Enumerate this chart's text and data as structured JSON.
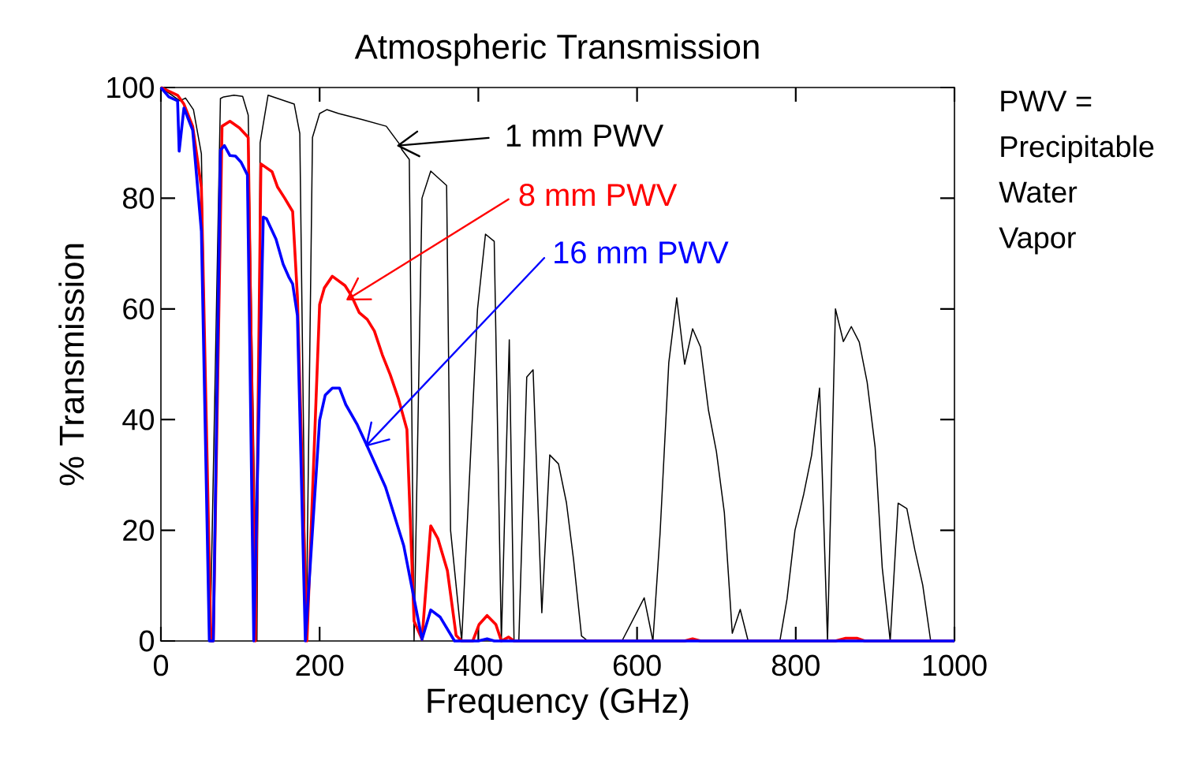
{
  "chart_data": {
    "type": "line",
    "title": "Atmospheric Transmission",
    "xlabel": "Frequency (GHz)",
    "ylabel": "% Transmission",
    "xlim": [
      0,
      1000
    ],
    "ylim": [
      0,
      100
    ],
    "xticks": [
      0,
      200,
      400,
      600,
      800,
      1000
    ],
    "yticks": [
      0,
      20,
      40,
      60,
      80,
      100
    ],
    "grid": false,
    "legend": "top right",
    "marker": "none",
    "annotations": [
      "PWV = Precipitable Water Vapor"
    ],
    "series": [
      {
        "name": "1 mm PWV",
        "color": "#000000",
        "x": [
          0,
          20,
          24,
          31,
          41,
          51,
          62,
          75,
          79,
          92,
          103,
          110,
          121,
          125,
          135,
          168,
          175,
          183,
          191,
          200,
          209,
          224,
          254,
          284,
          300,
          304,
          313,
          319,
          329,
          340,
          360,
          365,
          379,
          399,
          409,
          420,
          429,
          439,
          445,
          451,
          461,
          469,
          480,
          490,
          501,
          511,
          520,
          530,
          538,
          581,
          599,
          609,
          620,
          629,
          640,
          650,
          660,
          670,
          680,
          690,
          700,
          710,
          720,
          730,
          740,
          780,
          789,
          799,
          810,
          820,
          830,
          840,
          850,
          860,
          870,
          880,
          890,
          900,
          909,
          919,
          929,
          940,
          950,
          960,
          970,
          1000
        ],
        "values": [
          100,
          98,
          97.6,
          98.1,
          96,
          88,
          0,
          98,
          98.3,
          98.6,
          98.4,
          95,
          0,
          90,
          98.6,
          97,
          91.7,
          0,
          91,
          95.3,
          96,
          95.3,
          94.2,
          93,
          89.9,
          88.7,
          87,
          0,
          80,
          84.9,
          82.3,
          20,
          0,
          60,
          73.5,
          72.2,
          0,
          54.4,
          0,
          0,
          47.7,
          49,
          5.1,
          33.6,
          32,
          25,
          14.7,
          0.9,
          0,
          0,
          5,
          7.8,
          0,
          19.4,
          50.3,
          62,
          50,
          56.4,
          53.1,
          41.7,
          34.2,
          23.2,
          1.4,
          5.7,
          0,
          0,
          7.6,
          20,
          26.5,
          33.6,
          45.7,
          0,
          60,
          54.1,
          56.8,
          54,
          46.7,
          35,
          13.2,
          0,
          24.9,
          23.9,
          16.5,
          10.1,
          0,
          0
        ]
      },
      {
        "name": "8 mm PWV",
        "color": "#ff0000",
        "x": [
          0,
          21,
          29,
          40,
          51,
          63,
          66,
          77,
          87,
          99,
          110,
          119,
          126,
          140,
          147,
          156,
          166,
          172,
          184,
          200,
          206,
          216,
          232,
          240,
          250,
          260,
          269,
          279,
          289,
          299,
          310,
          319,
          329,
          340,
          349,
          361,
          372,
          379,
          393,
          401,
          411,
          422,
          429,
          438,
          445,
          660,
          670,
          680,
          850,
          863,
          877,
          887,
          1000
        ],
        "values": [
          100,
          98.6,
          97,
          93,
          81.9,
          0,
          0,
          93,
          93.9,
          92.7,
          91,
          0,
          86.2,
          84.8,
          82,
          80,
          77.6,
          62.2,
          0,
          60.8,
          63.8,
          65.9,
          64.2,
          62.4,
          59.3,
          58.1,
          56,
          51.7,
          48.1,
          43.9,
          38.2,
          3.6,
          0.3,
          20.8,
          18.5,
          12.7,
          1,
          0,
          0,
          3,
          4.6,
          3,
          0,
          0.7,
          0,
          0,
          0.4,
          0,
          0,
          0.5,
          0.5,
          0,
          0
        ]
      },
      {
        "name": "16 mm PWV",
        "color": "#0000ff",
        "x": [
          0,
          10,
          21,
          23,
          29,
          40,
          51,
          61,
          66,
          75,
          80,
          87,
          94,
          101,
          109,
          117,
          129,
          133,
          145,
          154,
          161,
          166,
          172,
          182,
          200,
          207,
          216,
          225,
          233,
          247,
          260,
          283,
          306,
          329,
          340,
          352,
          370,
          400,
          411,
          420,
          1000
        ],
        "values": [
          100,
          98.3,
          97.6,
          88.5,
          96.3,
          92.3,
          74,
          0,
          0,
          88.7,
          89.5,
          87.7,
          87.6,
          86.5,
          84.2,
          0,
          76.6,
          76.3,
          72.6,
          68.1,
          65.8,
          64.5,
          58.8,
          0,
          39.9,
          44.4,
          45.7,
          45.7,
          42.7,
          39.2,
          35.2,
          27.8,
          17.2,
          0.3,
          5.6,
          4.3,
          0,
          0,
          0.4,
          0,
          0
        ]
      }
    ]
  }
}
